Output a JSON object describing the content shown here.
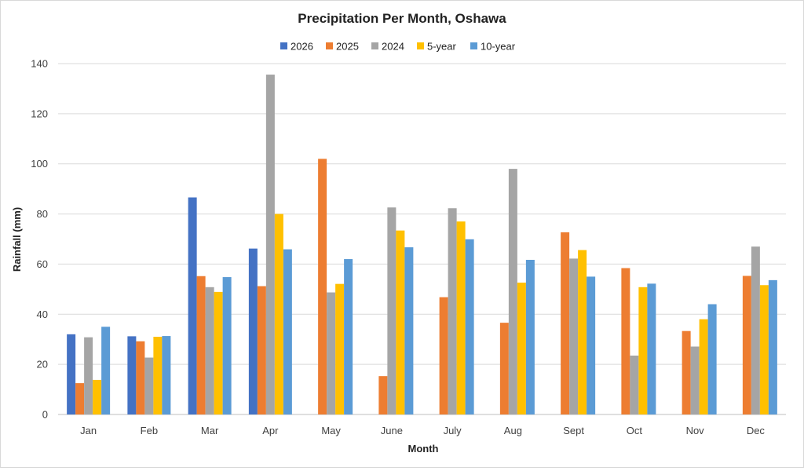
{
  "chart_data": {
    "type": "bar",
    "title": "Precipitation Per Month, Oshawa",
    "xlabel": "Month",
    "ylabel": "Rainfall (mm)",
    "ylim": [
      0,
      140
    ],
    "ytick_step": 20,
    "yticks": [
      "0",
      "20",
      "40",
      "60",
      "80",
      "100",
      "120",
      "140"
    ],
    "grid": true,
    "legend_position": "top",
    "categories": [
      "Jan",
      "Feb",
      "Mar",
      "Apr",
      "May",
      "June",
      "July",
      "Aug",
      "Sept",
      "Oct",
      "Nov",
      "Dec"
    ],
    "series": [
      {
        "name": "2026",
        "color": "#4472C4",
        "values": [
          32,
          31.2,
          86.6,
          66.2,
          null,
          null,
          null,
          null,
          null,
          null,
          null,
          null
        ]
      },
      {
        "name": "2025",
        "color": "#ED7D31",
        "values": [
          12.5,
          29.2,
          55.2,
          51.2,
          102,
          15.3,
          46.8,
          36.6,
          72.7,
          58.4,
          33.3,
          55.3
        ]
      },
      {
        "name": "2024",
        "color": "#A5A5A5",
        "values": [
          30.8,
          22.7,
          50.8,
          135.6,
          48.7,
          82.6,
          82.3,
          98,
          62.2,
          23.5,
          27.1,
          67
        ]
      },
      {
        "name": "5-year",
        "color": "#FFC000",
        "values": [
          13.8,
          31,
          48.9,
          80,
          52.1,
          73.4,
          77,
          52.6,
          65.6,
          50.8,
          38,
          51.6
        ]
      },
      {
        "name": "10-year",
        "color": "#5B9BD5",
        "values": [
          35,
          31.3,
          54.8,
          65.9,
          62,
          66.7,
          69.9,
          61.7,
          55,
          52.2,
          44,
          53.6
        ]
      }
    ]
  }
}
